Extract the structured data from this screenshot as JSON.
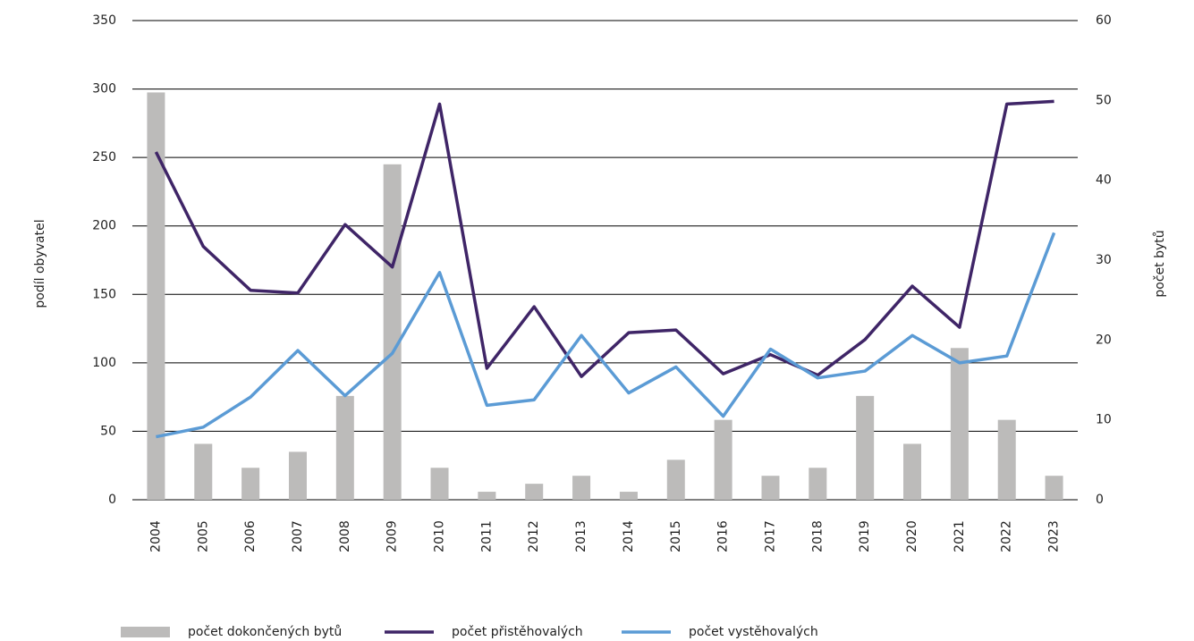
{
  "chart_data": {
    "type": "combo",
    "categories": [
      "2004",
      "2005",
      "2006",
      "2007",
      "2008",
      "2009",
      "2010",
      "2011",
      "2012",
      "2013",
      "2014",
      "2015",
      "2016",
      "2017",
      "2018",
      "2019",
      "2020",
      "2021",
      "2022",
      "2023"
    ],
    "y_label": "podíl obyvatel",
    "y2_label": "počet bytů",
    "ylim": [
      0,
      350
    ],
    "yticks": [
      0,
      50,
      100,
      150,
      200,
      250,
      300,
      350
    ],
    "y2lim": [
      0,
      60
    ],
    "y2ticks": [
      0,
      10,
      20,
      30,
      40,
      50,
      60
    ],
    "grid": true,
    "legend": "bottom",
    "series": [
      {
        "name": "počet dokončených bytů",
        "type": "bar",
        "axis": "y2",
        "color": "#bcbbba",
        "values": [
          51,
          7,
          4,
          6,
          13,
          42,
          4,
          1,
          2,
          3,
          1,
          5,
          10,
          3,
          4,
          13,
          7,
          19,
          10,
          3
        ]
      },
      {
        "name": "počet přistěhovalých",
        "type": "line",
        "axis": "y",
        "color": "#3f2567",
        "values": [
          254,
          185,
          153,
          151,
          201,
          170,
          289,
          96,
          141,
          90,
          122,
          124,
          92,
          106,
          91,
          117,
          156,
          126,
          289,
          291
        ]
      },
      {
        "name": "počet vystěhovalých",
        "type": "line",
        "axis": "y",
        "color": "#5b9bd5",
        "values": [
          46,
          53,
          75,
          109,
          76,
          107,
          166,
          69,
          73,
          120,
          78,
          97,
          61,
          110,
          89,
          94,
          120,
          100,
          105,
          195
        ]
      }
    ]
  }
}
